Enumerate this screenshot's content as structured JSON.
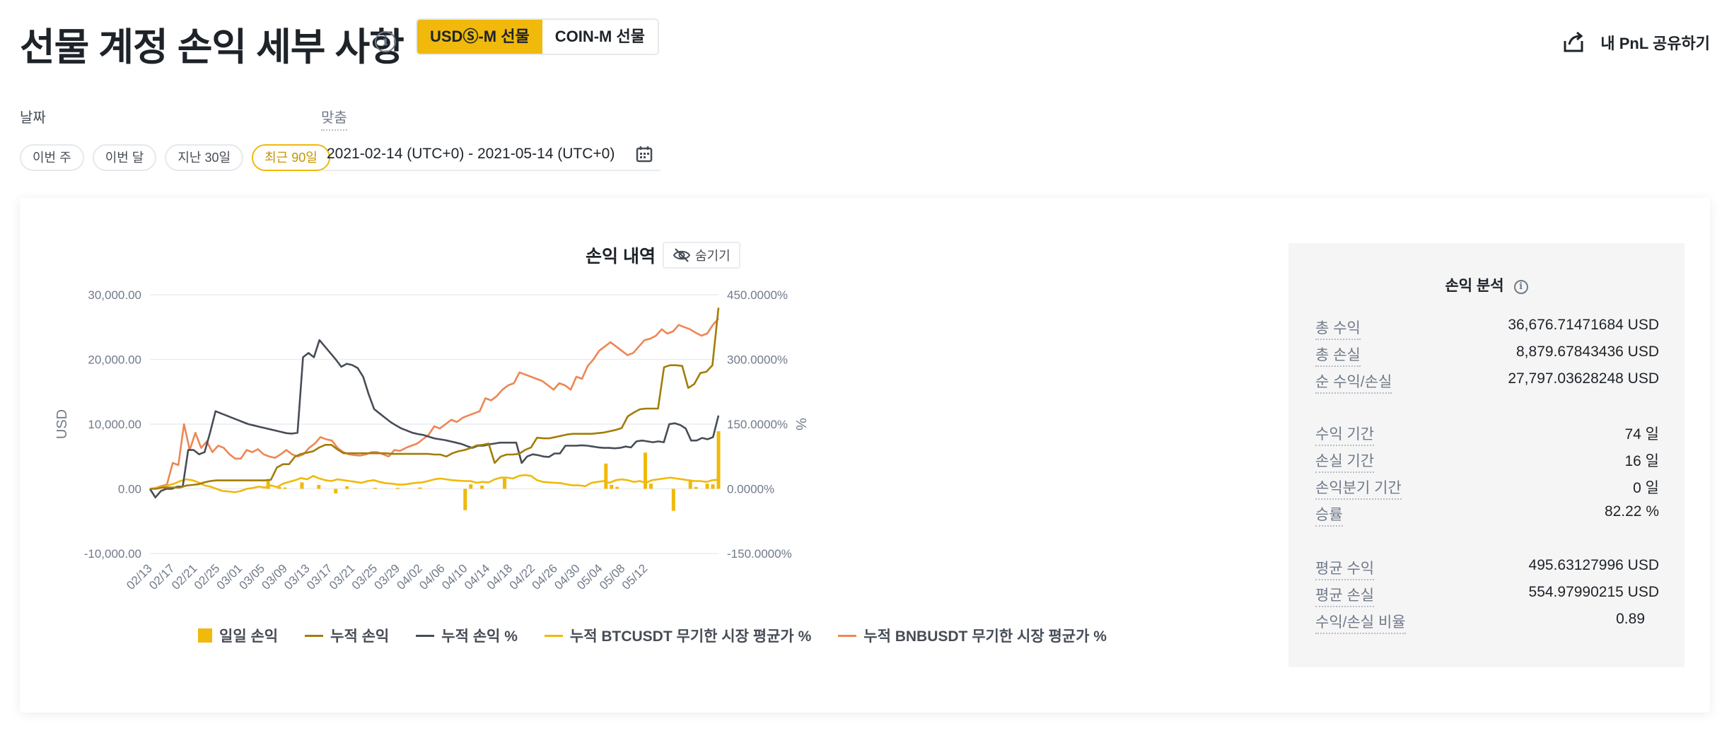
{
  "header": {
    "title": "선물 계정 손익 세부 사항",
    "tabs": [
      {
        "label": "USDⓈ-M 선물",
        "active": true
      },
      {
        "label": "COIN-M 선물",
        "active": false
      }
    ],
    "share_label": "내 PnL 공유하기"
  },
  "filters": {
    "date_label": "날짜",
    "custom_label": "맞춤",
    "ranges": [
      {
        "label": "이번 주",
        "active": false
      },
      {
        "label": "이번 달",
        "active": false
      },
      {
        "label": "지난 30일",
        "active": false
      },
      {
        "label": "최근 90일",
        "active": true
      }
    ],
    "date_range": "2021-02-14 (UTC+0) - 2021-05-14 (UTC+0)"
  },
  "chart": {
    "title": "손익 내역",
    "hide_label": "숨기기"
  },
  "colors": {
    "daily": "#f0b90b",
    "cum_pnl": "#a27d06",
    "cum_pnl_pct": "#474d57",
    "btc": "#f0b90b",
    "bnb": "#ed8654"
  },
  "chart_data": {
    "type": "line",
    "title": "손익 내역",
    "ylabel": "USD",
    "y2label": "%",
    "ylim": [
      -10000,
      30000
    ],
    "y2lim": [
      -150,
      450
    ],
    "yticks": [
      "30,000.00",
      "20,000.00",
      "10,000.00",
      "0.00",
      "-10,000.00"
    ],
    "y2ticks": [
      "450.0000%",
      "300.0000%",
      "150.0000%",
      "0.0000%",
      "-150.0000%"
    ],
    "xticks": [
      "02/13",
      "02/17",
      "02/21",
      "02/25",
      "03/01",
      "03/05",
      "03/09",
      "03/13",
      "03/17",
      "03/21",
      "03/25",
      "03/29",
      "04/02",
      "04/06",
      "04/10",
      "04/14",
      "04/18",
      "04/22",
      "04/26",
      "04/30",
      "05/04",
      "05/08",
      "05/12"
    ],
    "series": [
      {
        "name": "일일 손익",
        "axis": "left",
        "kind": "bar",
        "points": [
          [
            21,
            1500
          ],
          [
            23,
            300
          ],
          [
            24,
            200
          ],
          [
            27,
            1000
          ],
          [
            30,
            600
          ],
          [
            33,
            -700
          ],
          [
            35,
            400
          ],
          [
            40,
            150
          ],
          [
            44,
            150
          ],
          [
            48,
            200
          ],
          [
            56,
            -3300
          ],
          [
            57,
            700
          ],
          [
            59,
            500
          ],
          [
            63,
            1600
          ],
          [
            81,
            3900
          ],
          [
            82,
            600
          ],
          [
            83,
            300
          ],
          [
            88,
            5600
          ],
          [
            89,
            800
          ],
          [
            93,
            -3400
          ],
          [
            96,
            1400
          ],
          [
            97,
            300
          ],
          [
            99,
            800
          ],
          [
            100,
            700
          ],
          [
            101,
            8900
          ]
        ]
      },
      {
        "name": "누적 손익",
        "axis": "left",
        "kind": "line",
        "values": [
          0,
          0,
          200,
          200,
          200,
          200,
          500,
          600,
          700,
          1000,
          1200,
          1300,
          1300,
          1300,
          1300,
          1300,
          1300,
          1300,
          1300,
          1300,
          1400,
          3300,
          3800,
          3800,
          5000,
          5400,
          5600,
          5800,
          6400,
          6800,
          6800,
          6100,
          5500,
          5500,
          5500,
          5500,
          5500,
          5500,
          5500,
          5500,
          5400,
          5400,
          5400,
          5400,
          5400,
          5400,
          5400,
          5300,
          5300,
          5000,
          5500,
          5800,
          6000,
          6300,
          6700,
          6800,
          7000,
          4000,
          5000,
          5300,
          5300,
          5400,
          6000,
          6400,
          7900,
          7800,
          7800,
          8000,
          8200,
          8400,
          8500,
          8500,
          8500,
          8500,
          8600,
          8700,
          8900,
          9100,
          9400,
          11200,
          11800,
          12300,
          12400,
          12400,
          12400,
          18800,
          19100,
          19100,
          19000,
          15600,
          16200,
          17900,
          18100,
          19100,
          28000
        ]
      },
      {
        "name": "누적 손익 %",
        "axis": "right",
        "kind": "line",
        "values": [
          0,
          -20,
          -5,
          0,
          0,
          5,
          5,
          90,
          90,
          80,
          85,
          130,
          180,
          175,
          170,
          165,
          160,
          155,
          150,
          147,
          144,
          141,
          138,
          135,
          132,
          129,
          128,
          130,
          305,
          315,
          305,
          345,
          330,
          315,
          300,
          283,
          290,
          287,
          280,
          260,
          220,
          185,
          175,
          165,
          155,
          147,
          140,
          135,
          130,
          127,
          125,
          121,
          117,
          115,
          113,
          110,
          107,
          104,
          99,
          95,
          100,
          100,
          103,
          105,
          107,
          107,
          107,
          107,
          60,
          75,
          80,
          78,
          75,
          74,
          82,
          82,
          100,
          100,
          100,
          101,
          100,
          98,
          96,
          95,
          95,
          94,
          95,
          98,
          96,
          110,
          112,
          110,
          108,
          110,
          108,
          150,
          152,
          148,
          140,
          112,
          112,
          118,
          115,
          120,
          170
        ]
      },
      {
        "name": "누적 BTCUSDT 무기한 시장 평균가 %",
        "axis": "right",
        "kind": "line",
        "values": [
          0,
          2,
          4,
          8,
          12,
          18,
          22,
          20,
          15,
          8,
          5,
          0,
          -5,
          -6,
          -8,
          -5,
          0,
          2,
          5,
          3,
          8,
          4,
          12,
          16,
          20,
          25,
          22,
          30,
          24,
          20,
          18,
          22,
          20,
          18,
          16,
          14,
          18,
          20,
          16,
          13,
          12,
          10,
          10,
          12,
          14,
          15,
          18,
          22,
          24,
          22,
          20,
          19,
          18,
          18,
          14,
          16,
          15,
          22,
          26,
          26,
          24,
          30,
          32,
          30,
          20,
          16,
          15,
          14,
          13,
          10,
          8,
          8,
          6,
          14,
          16,
          18,
          14,
          20,
          22,
          20,
          16,
          18,
          14,
          20,
          22,
          24,
          26,
          24,
          22,
          20,
          18,
          18,
          16,
          20,
          21
        ]
      },
      {
        "name": "누적 BNBUSDT 무기한 시장 평균가 %",
        "axis": "right",
        "kind": "line",
        "values": [
          0,
          2,
          6,
          10,
          60,
          55,
          150,
          90,
          130,
          95,
          110,
          85,
          100,
          95,
          80,
          70,
          70,
          90,
          85,
          92,
          80,
          75,
          72,
          80,
          90,
          80,
          75,
          80,
          95,
          105,
          120,
          115,
          112,
          95,
          85,
          80,
          78,
          77,
          80,
          85,
          85,
          80,
          75,
          90,
          88,
          95,
          100,
          105,
          115,
          125,
          145,
          140,
          150,
          160,
          155,
          165,
          170,
          175,
          180,
          210,
          205,
          215,
          230,
          240,
          245,
          270,
          265,
          260,
          255,
          250,
          240,
          230,
          245,
          240,
          230,
          260,
          255,
          285,
          300,
          320,
          330,
          340,
          330,
          320,
          310,
          315,
          330,
          345,
          348,
          355,
          370,
          360,
          365,
          380,
          375,
          370,
          362,
          355,
          360,
          380,
          395
        ]
      }
    ],
    "x_count": 102
  },
  "analysis": {
    "title": "손익 분석",
    "groups": [
      [
        {
          "label": "총 수익",
          "value": "36,676.71471684 USD"
        },
        {
          "label": "총 손실",
          "value": "8,879.67843436 USD"
        },
        {
          "label": "순 수익/손실",
          "value": "27,797.03628248 USD"
        }
      ],
      [
        {
          "label": "수익 기간",
          "value": "74 일"
        },
        {
          "label": "손실 기간",
          "value": "16 일"
        },
        {
          "label": "손익분기 기간",
          "value": "0 일"
        },
        {
          "label": "승률",
          "value": "82.22 %"
        }
      ],
      [
        {
          "label": "평균 수익",
          "value": "495.63127996 USD"
        },
        {
          "label": "평균 손실",
          "value": "554.97990215 USD"
        },
        {
          "label": "수익/손실 비율",
          "value": "0.89"
        }
      ]
    ]
  }
}
